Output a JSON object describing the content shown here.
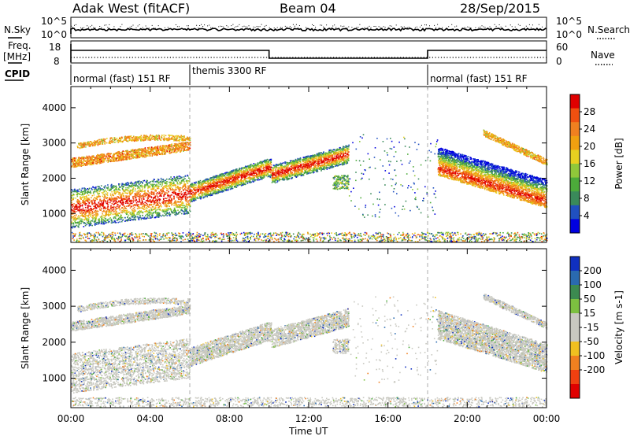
{
  "header": {
    "station": "Adak West (fitACF)",
    "beam": "Beam 04",
    "date": "28/Sep/2015"
  },
  "side_labels": {
    "nsky": "N.Sky",
    "freq_top": "Freq.",
    "freq_unit": "[MHz]",
    "cpid": "CPID",
    "nsearch": "N.Search",
    "nave": "Nave",
    "nsky_ticks": [
      "10^5",
      "10^0"
    ],
    "nsearch_ticks": [
      "10^5",
      "10^0"
    ],
    "freq_ticks": [
      "18",
      "8"
    ],
    "nave_ticks": [
      "60",
      "0"
    ]
  },
  "cpid_segments": [
    {
      "label": "normal (fast) 151 RF",
      "start_h": 0,
      "end_h": 6
    },
    {
      "label": "themis 3300 RF",
      "start_h": 6,
      "end_h": 18
    },
    {
      "label": "normal (fast) 151 RF",
      "start_h": 18,
      "end_h": 24
    }
  ],
  "chart_data": [
    {
      "type": "heatmap",
      "name": "power",
      "xlabel": "Time UT",
      "ylabel": "Slant Range [km]",
      "x_ticks": [
        "00:00",
        "04:00",
        "08:00",
        "12:00",
        "16:00",
        "20:00",
        "00:00"
      ],
      "xlim_hours": [
        0,
        24
      ],
      "y_ticks": [
        1000,
        2000,
        3000,
        4000
      ],
      "ylim_km": [
        180,
        4600
      ],
      "colorbar_label": "Power [dB]",
      "colorbar_ticks": [
        "4",
        "8",
        "12",
        "16",
        "20",
        "24",
        "28"
      ],
      "colorbar_range": [
        0,
        32
      ],
      "colors": [
        "#0000e0",
        "#2050c0",
        "#3a8a5a",
        "#4cab3a",
        "#90c83a",
        "#e8d020",
        "#f0a010",
        "#f08020",
        "#f05010",
        "#e00000"
      ]
    },
    {
      "type": "heatmap",
      "name": "velocity",
      "xlabel": "Time UT",
      "ylabel": "Slant Range [km]",
      "x_ticks": [
        "00:00",
        "04:00",
        "08:00",
        "12:00",
        "16:00",
        "20:00",
        "00:00"
      ],
      "xlim_hours": [
        0,
        24
      ],
      "y_ticks": [
        1000,
        2000,
        3000,
        4000
      ],
      "ylim_km": [
        180,
        4600
      ],
      "colorbar_label": "Velocity [m s-1]",
      "colorbar_ticks": [
        "200",
        "100",
        "50",
        "15",
        "-15",
        "-50",
        "-100",
        "-200"
      ],
      "colors": [
        "#1030c0",
        "#2a6ab0",
        "#3c8a50",
        "#7cc040",
        "#c8c8c0",
        "#c8c8c0",
        "#f0c020",
        "#f08020",
        "#f04010",
        "#e00000"
      ]
    }
  ]
}
